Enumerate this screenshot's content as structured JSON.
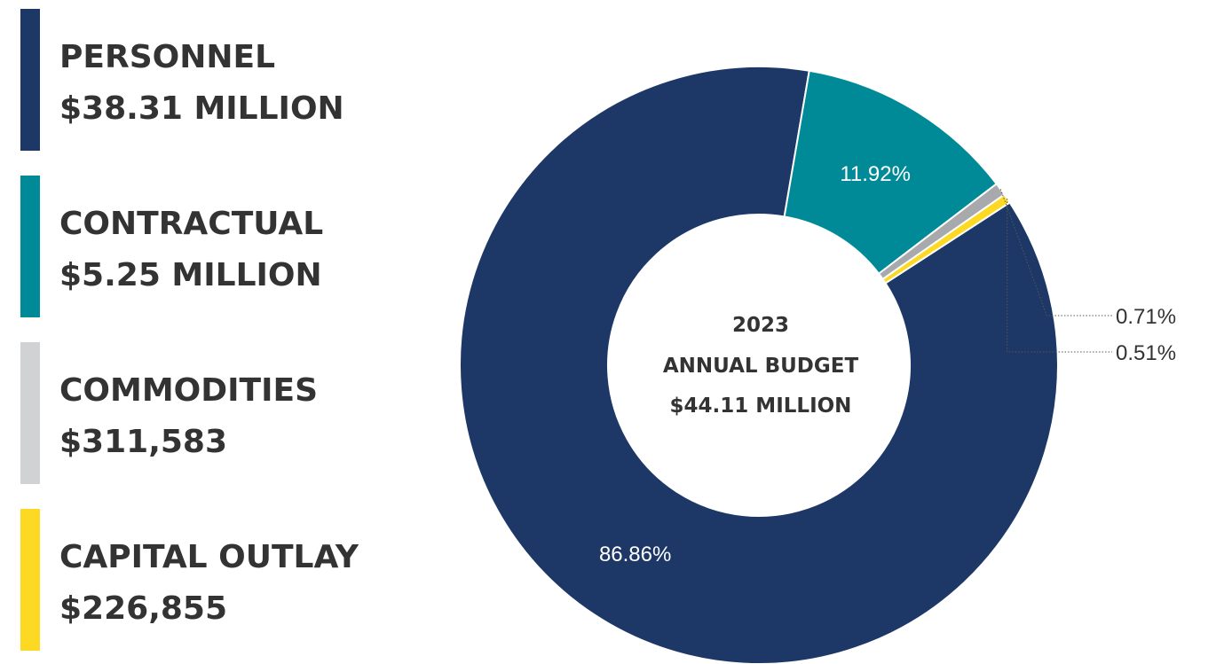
{
  "legend": [
    {
      "title": "PERSONNEL",
      "value": "$38.31 MILLION",
      "color": "#1d3866"
    },
    {
      "title": "CONTRACTUAL",
      "value": "$5.25 MILLION",
      "color": "#008a98"
    },
    {
      "title": "COMMODITIES",
      "value": "$311,583",
      "color": "#d1d2d4"
    },
    {
      "title": "CAPITAL OUTLAY",
      "value": "$226,855",
      "color": "#fed924"
    }
  ],
  "center": {
    "line1": "2023",
    "line2": "ANNUAL BUDGET",
    "line3": "$44.11 MILLION"
  },
  "chart_data": {
    "type": "pie",
    "donut": true,
    "categories": [
      "PERSONNEL",
      "CONTRACTUAL",
      "COMMODITIES",
      "CAPITAL OUTLAY"
    ],
    "values": [
      86.86,
      11.92,
      0.71,
      0.51
    ],
    "labels": [
      "86.86%",
      "11.92%",
      "0.71%",
      "0.51%"
    ],
    "colors": [
      "#1d3866",
      "#008a98",
      "#a7a9ac",
      "#fed924"
    ],
    "label_colors": [
      "#ffffff",
      "#ffffff",
      "#333333",
      "#333333"
    ]
  }
}
